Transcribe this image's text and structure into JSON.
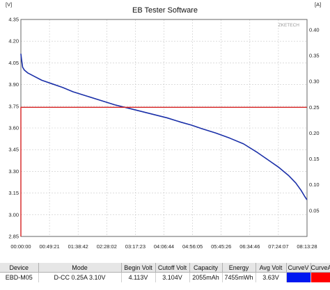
{
  "chart_data": {
    "type": "line",
    "title": "EB Tester Software",
    "left_unit": "[V]",
    "right_unit": "[A]",
    "watermark": "ZKETECH",
    "y_left_ticks": [
      "4.35",
      "4.20",
      "4.05",
      "3.90",
      "3.75",
      "3.60",
      "3.45",
      "3.30",
      "3.15",
      "3.00",
      "2.85"
    ],
    "y_right_ticks": [
      "0.40",
      "0.35",
      "0.30",
      "0.25",
      "0.20",
      "0.15",
      "0.10",
      "0.05"
    ],
    "x_ticks": [
      "00:00:00",
      "00:49:21",
      "01:38:42",
      "02:28:02",
      "03:17:23",
      "04:06:44",
      "04:56:05",
      "05:45:26",
      "06:34:46",
      "07:24:07",
      "08:13:28"
    ],
    "ylim_left": [
      2.85,
      4.35
    ],
    "ylim_right": [
      0.0,
      0.42
    ],
    "xlim_hours": [
      0,
      8.2244
    ],
    "grid": true,
    "series": [
      {
        "name": "CurveV",
        "color": "#1a2fa8",
        "x_hours": [
          0.0,
          0.015,
          0.05,
          0.1,
          0.2,
          0.4,
          0.6,
          0.9,
          1.2,
          1.5,
          1.9,
          2.3,
          2.7,
          3.2,
          3.7,
          4.2,
          4.6,
          4.9,
          5.2,
          5.6,
          6.0,
          6.4,
          6.8,
          7.1,
          7.4,
          7.7,
          7.9,
          8.05,
          8.15,
          8.22
        ],
        "values": [
          4.113,
          4.08,
          4.02,
          4.0,
          3.98,
          3.955,
          3.93,
          3.905,
          3.88,
          3.85,
          3.82,
          3.79,
          3.76,
          3.73,
          3.7,
          3.67,
          3.64,
          3.62,
          3.595,
          3.565,
          3.53,
          3.49,
          3.43,
          3.38,
          3.33,
          3.27,
          3.22,
          3.17,
          3.13,
          3.104
        ]
      },
      {
        "name": "CurveA",
        "color": "#d62020",
        "x_hours": [
          0.0,
          0.0,
          8.22
        ],
        "values": [
          0.0,
          0.25,
          0.25
        ]
      }
    ]
  },
  "table": {
    "headers": [
      "Device",
      "Mode",
      "Begin Volt",
      "Cutoff Volt",
      "Capacity",
      "Energy",
      "Avg Volt",
      "CurveV",
      "CurveA"
    ],
    "row": [
      "EBD-M05",
      "D-CC  0.25A  3.10V",
      "4.113V",
      "3.104V",
      "2055mAh",
      "7455mWh",
      "3.63V",
      "",
      ""
    ],
    "curve_colors": [
      "#0018f0",
      "#ff0000"
    ]
  }
}
